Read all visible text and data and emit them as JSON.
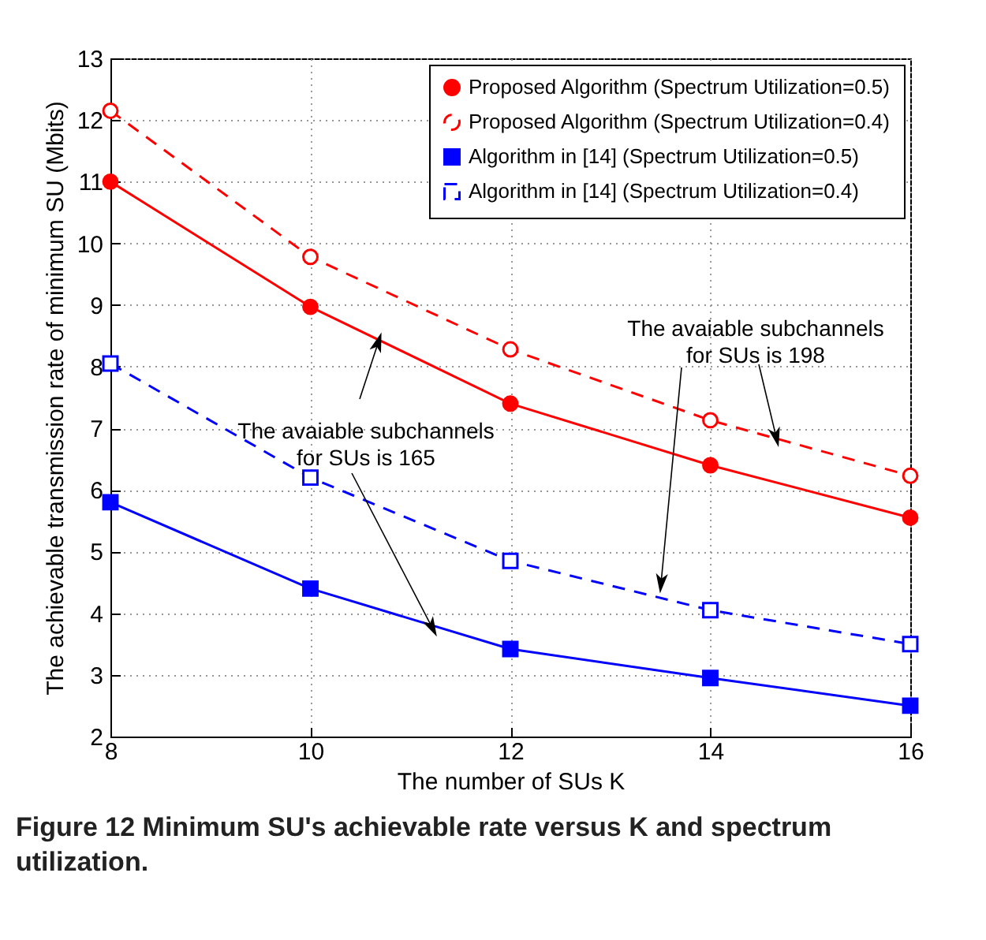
{
  "chart_data": {
    "type": "line",
    "xlabel": "The number of SUs K",
    "ylabel": "The achievable transmission rate of minimum SU (Mbits)",
    "x": [
      8,
      10,
      12,
      14,
      16
    ],
    "series": [
      {
        "name": "Proposed Algorithm (Spectrum Utilization=0.5)",
        "color": "#ff0000",
        "marker": "circle",
        "line_style": "solid",
        "values": [
          11,
          8.97,
          7.4,
          6.4,
          5.55
        ]
      },
      {
        "name": "Proposed Algorithm (Spectrum Utilization=0.4)",
        "color": "#ff0000",
        "marker": "circle",
        "line_style": "dashed",
        "values": [
          12.15,
          9.78,
          8.28,
          7.13,
          6.23
        ]
      },
      {
        "name": "Algorithm in [14] (Spectrum Utilization=0.5)",
        "color": "#0000ff",
        "marker": "square",
        "line_style": "solid",
        "values": [
          5.8,
          4.4,
          3.42,
          2.95,
          2.5
        ]
      },
      {
        "name": "Algorithm in [14] (Spectrum Utilization=0.4)",
        "color": "#0000ff",
        "marker": "square",
        "line_style": "dashed",
        "values": [
          8.05,
          6.2,
          4.85,
          4.05,
          3.5
        ]
      }
    ],
    "xlim": [
      8,
      16
    ],
    "xticks": [
      {
        "value": 8,
        "label": "8"
      },
      {
        "value": 10,
        "label": "10"
      },
      {
        "value": 12,
        "label": "12"
      },
      {
        "value": 14,
        "label": "14"
      },
      {
        "value": 16,
        "label": "16"
      }
    ],
    "ylim": [
      2,
      13
    ],
    "yticks": [
      2,
      3,
      4,
      5,
      6,
      7,
      8,
      9,
      10,
      11,
      12,
      13
    ],
    "grid": true,
    "legend": "top right",
    "annotations": [
      {
        "text": "The avaiable subchannels\nfor SUs is 165",
        "x": 10.68,
        "y": 8.4
      },
      {
        "text": "The avaiable subchannels\nfor SUs is 198",
        "x": 14.66,
        "y": 6.85
      },
      "Figure 12 Minimum SU's achievable rate versus K and spectrum utilization."
    ]
  }
}
